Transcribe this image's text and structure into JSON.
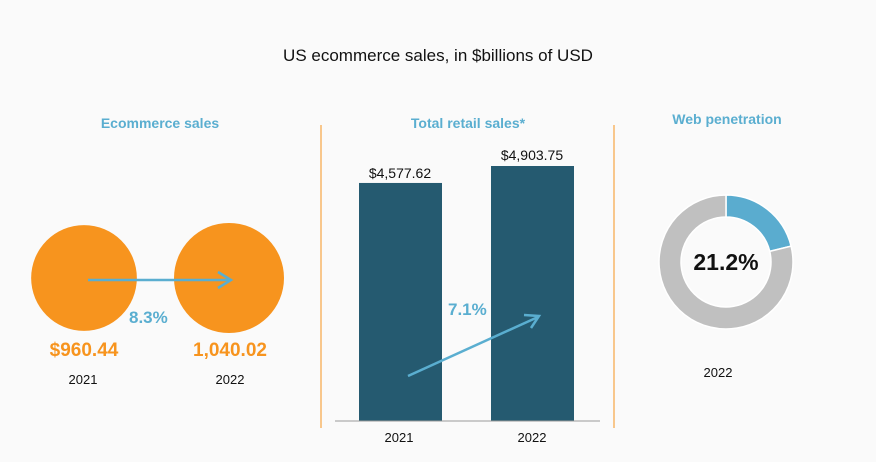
{
  "chart_data": [
    {
      "type": "bubble",
      "title": "Ecommerce sales",
      "categories": [
        "2021",
        "2022"
      ],
      "values": [
        960.44,
        1040.02
      ],
      "value_labels": [
        "$960.44",
        "1,040.02"
      ],
      "growth_label": "8.3%",
      "color": "#f7941e"
    },
    {
      "type": "bar",
      "title": "Total retail sales*",
      "categories": [
        "2021",
        "2022"
      ],
      "values": [
        4577.62,
        4903.75
      ],
      "value_labels": [
        "$4,577.62",
        "$4,903.75"
      ],
      "growth_label": "7.1%",
      "ylim": [
        0,
        4903.75
      ],
      "color": "#255a70"
    },
    {
      "type": "pie",
      "title": "Web penetration",
      "values": [
        21.2,
        78.8
      ],
      "center_label": "21.2%",
      "category": "2022",
      "colors": [
        "#5aaccf",
        "#c0c0c0"
      ]
    }
  ],
  "title": "US ecommerce sales, in $billions of USD",
  "accent_color": "#5aaed0",
  "divider_color": "#f7941e"
}
